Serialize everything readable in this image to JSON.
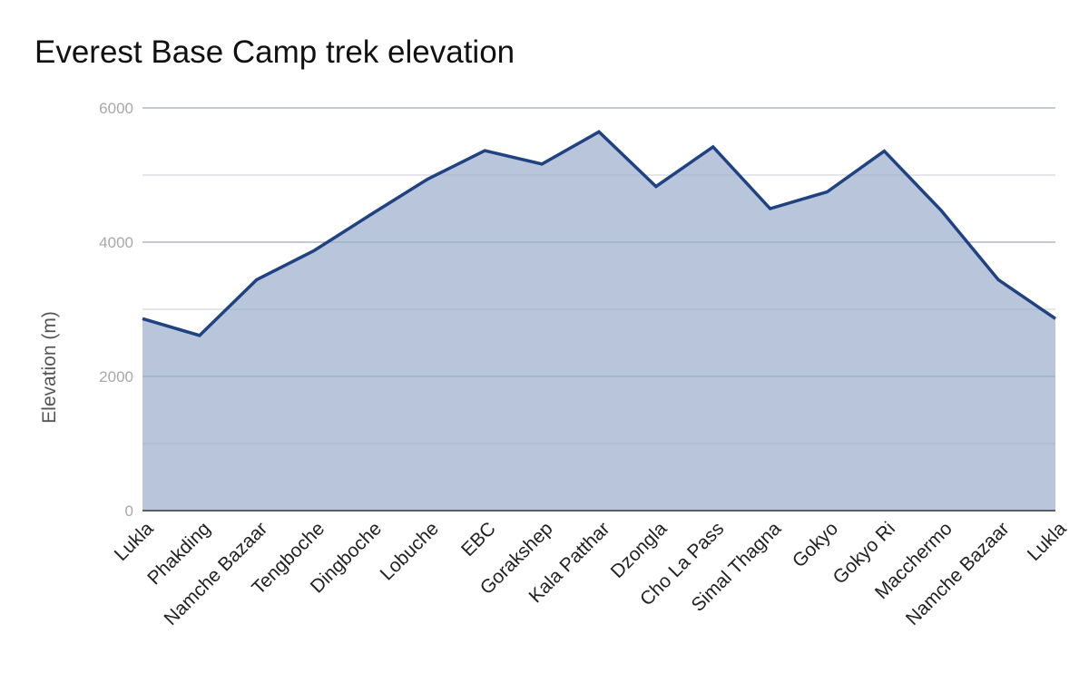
{
  "chart_data": {
    "type": "area",
    "title": "Everest Base Camp trek elevation",
    "xlabel": "",
    "ylabel": "Elevation (m)",
    "ylim": [
      0,
      6000
    ],
    "yticks": [
      0,
      2000,
      4000,
      6000
    ],
    "grid": true,
    "legend": "none",
    "categories": [
      "Lukla",
      "Phakding",
      "Namche Bazaar",
      "Tengboche",
      "Dingboche",
      "Lobuche",
      "EBC",
      "Gorakshep",
      "Kala Patthar",
      "Dzongla",
      "Cho La Pass",
      "Simal Thagna",
      "Gokyo",
      "Gokyo Ri",
      "Macchermo",
      "Namche Bazaar",
      "Lukla"
    ],
    "series": [
      {
        "values": [
          2860,
          2610,
          3440,
          3870,
          4410,
          4940,
          5364,
          5164,
          5644,
          4830,
          5420,
          4500,
          4750,
          5357,
          4470,
          3440,
          2860
        ],
        "line_color": "#1f4282",
        "fill_color": "#b8c5da"
      }
    ]
  }
}
